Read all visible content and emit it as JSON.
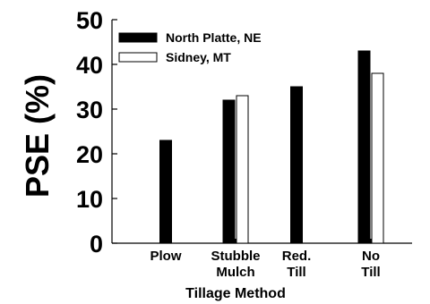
{
  "chart_data": {
    "type": "bar",
    "categories": [
      [
        "Plow"
      ],
      [
        "Stubble",
        "Mulch"
      ],
      [
        "Red.",
        "Till"
      ],
      [
        "No",
        "Till"
      ]
    ],
    "series": [
      {
        "name": "North Platte, NE",
        "color": "#000000",
        "values": [
          23,
          32,
          35,
          43
        ]
      },
      {
        "name": "Sidney, MT",
        "color": "#ffffff",
        "values": [
          null,
          33,
          null,
          38
        ]
      }
    ],
    "xlabel": "Tillage Method",
    "ylabel": "PSE (%)",
    "ylim": [
      0,
      50
    ],
    "yticks": [
      0,
      10,
      20,
      30,
      40,
      50
    ],
    "grid": false,
    "legend_position": "top-left"
  }
}
